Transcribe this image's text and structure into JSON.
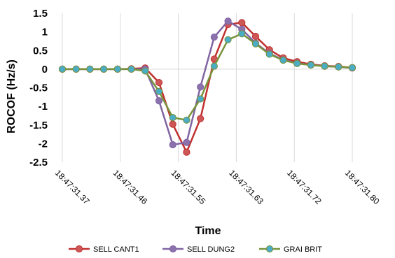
{
  "chart_data": {
    "type": "line",
    "title": "",
    "xlabel": "Time",
    "ylabel": "ROCOF (Hz/s)",
    "ylim": [
      -2.5,
      1.5
    ],
    "yticks": [
      "1.5",
      "1",
      "0.5",
      "0",
      "-0.5",
      "-1",
      "-1.5",
      "-2",
      "-2.5"
    ],
    "ytick_values": [
      1.5,
      1,
      0.5,
      0,
      -0.5,
      -1,
      -1.5,
      -2,
      -2.5
    ],
    "xlim": [
      0,
      21
    ],
    "xticks": [
      "18:47:31.37",
      "18:47:31.46",
      "18:47:31.55",
      "18:47:31.63",
      "18:47:31.72",
      "18:47:31.80"
    ],
    "xtick_positions": [
      0,
      4.2,
      8.4,
      12.6,
      16.8,
      21
    ],
    "x": [
      0,
      1,
      2,
      3,
      4,
      5,
      6,
      7,
      8,
      9,
      10,
      11,
      12,
      13,
      14,
      15,
      16,
      17,
      18,
      19,
      20,
      21
    ],
    "grid": "vertical",
    "legend": "bottom",
    "series": [
      {
        "name": "SELL CANT1",
        "color": "#c0302f",
        "marker": "#cd5757",
        "values": [
          0,
          0,
          0,
          0,
          0,
          0.01,
          0.03,
          -0.36,
          -1.48,
          -2.23,
          -1.33,
          0.27,
          1.2,
          1.25,
          0.88,
          0.52,
          0.3,
          0.2,
          0.13,
          0.09,
          0.07,
          0.04
        ]
      },
      {
        "name": "SELL DUNG2",
        "color": "#8064a2",
        "marker": "#8b72ad",
        "values": [
          0,
          0,
          0,
          0,
          0,
          0,
          0,
          -0.85,
          -2.03,
          -1.97,
          -0.48,
          0.86,
          1.29,
          1.07,
          0.7,
          0.42,
          0.25,
          0.16,
          0.11,
          0.08,
          0.06,
          0.03
        ]
      },
      {
        "name": "GRAI BRIT",
        "color": "#77933c",
        "marker": "#4bacc6",
        "values": [
          0,
          0,
          0,
          0,
          0,
          0,
          -0.05,
          -0.6,
          -1.3,
          -1.37,
          -0.8,
          0.08,
          0.79,
          0.95,
          0.68,
          0.4,
          0.24,
          0.15,
          0.11,
          0.08,
          0.06,
          0.04
        ]
      }
    ]
  }
}
